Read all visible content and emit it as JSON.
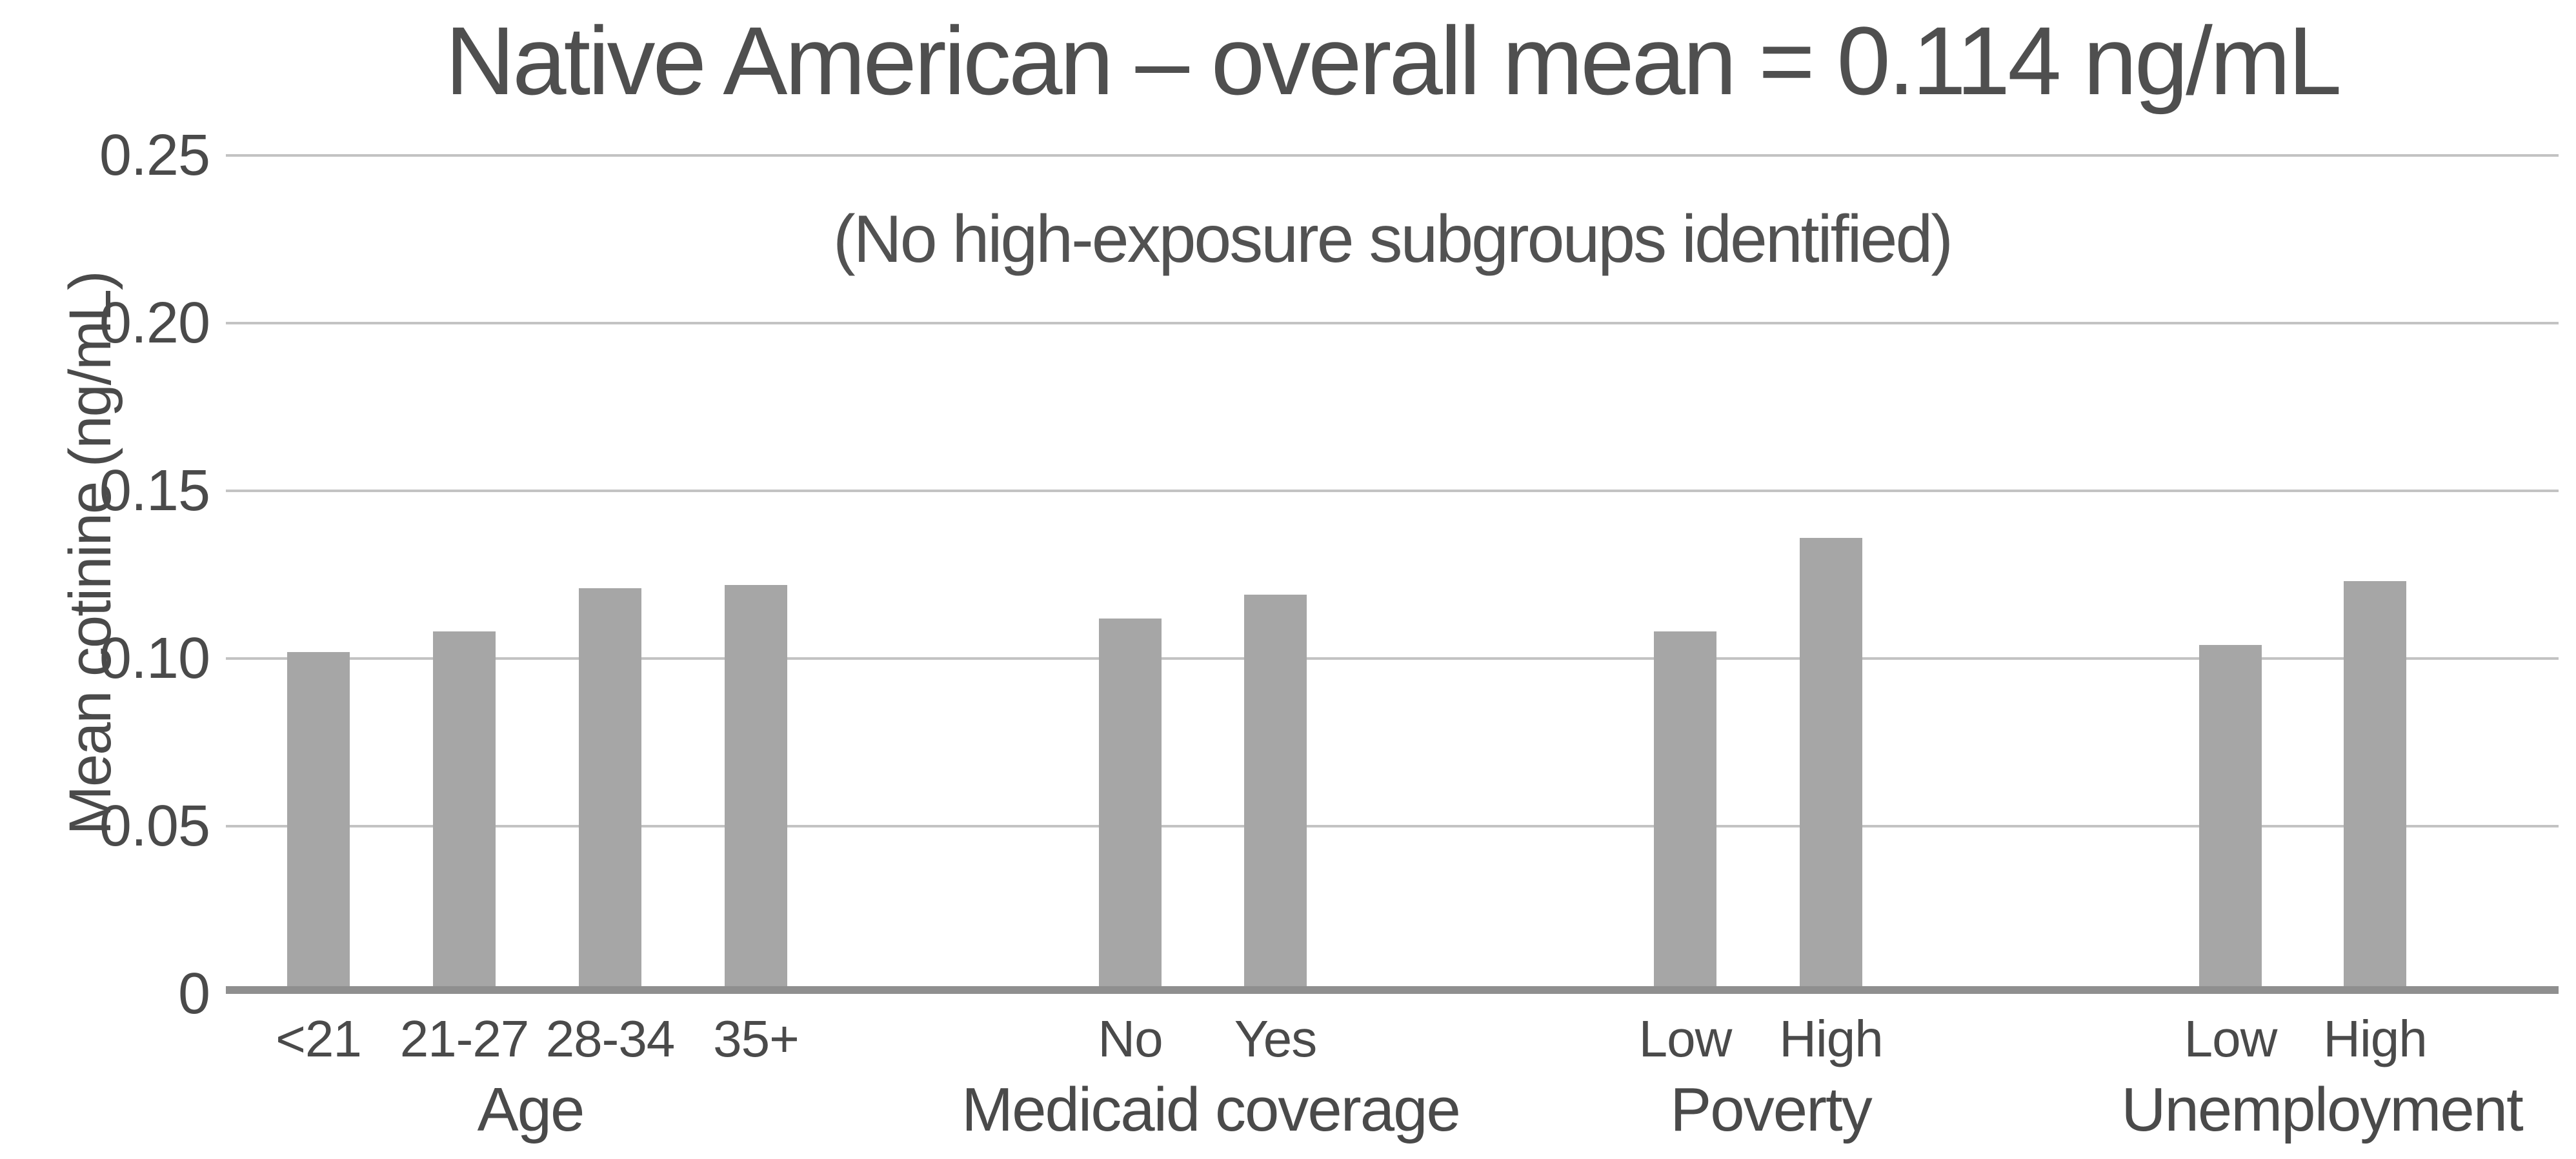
{
  "figure": {
    "title": "Native American – overall mean = 0.114 ng/mL",
    "annotation": "(No high-exposure subgroups identified)",
    "y_axis_label": "Mean cotinine (ng/mL)"
  },
  "chart_data": {
    "type": "bar",
    "title": "Native American – overall mean = 0.114 ng/mL",
    "subtitle_annotation": "(No high-exposure subgroups identified)",
    "xlabel": "",
    "ylabel": "Mean cotinine (ng/mL)",
    "ylim": [
      0,
      0.25
    ],
    "yticks": [
      0,
      0.05,
      0.1,
      0.15,
      0.2,
      0.25
    ],
    "ytick_labels": [
      "0",
      "0.05",
      "0.10",
      "0.15",
      "0.20",
      "0.25"
    ],
    "grid": "horizontal-only",
    "legend_position": "none",
    "overall_mean_ng_per_mL": 0.114,
    "single_series_color": "#a6a6a6",
    "groups": [
      {
        "label": "Age",
        "categories": [
          "<21",
          "21-27",
          "28-34",
          "35+"
        ],
        "values": [
          0.102,
          0.108,
          0.121,
          0.122
        ]
      },
      {
        "label": "Medicaid coverage",
        "categories": [
          "No",
          "Yes"
        ],
        "values": [
          0.112,
          0.119
        ]
      },
      {
        "label": "Poverty",
        "categories": [
          "Low",
          "High"
        ],
        "values": [
          0.108,
          0.136
        ]
      },
      {
        "label": "Unemployment",
        "categories": [
          "Low",
          "High"
        ],
        "values": [
          0.104,
          0.123
        ]
      }
    ],
    "colors": {
      "bar": "#a6a6a6",
      "gridline": "#c3c3c3",
      "axis_line": "#8f8f8f",
      "text": "#4a4a4a",
      "background": "#ffffff"
    }
  }
}
